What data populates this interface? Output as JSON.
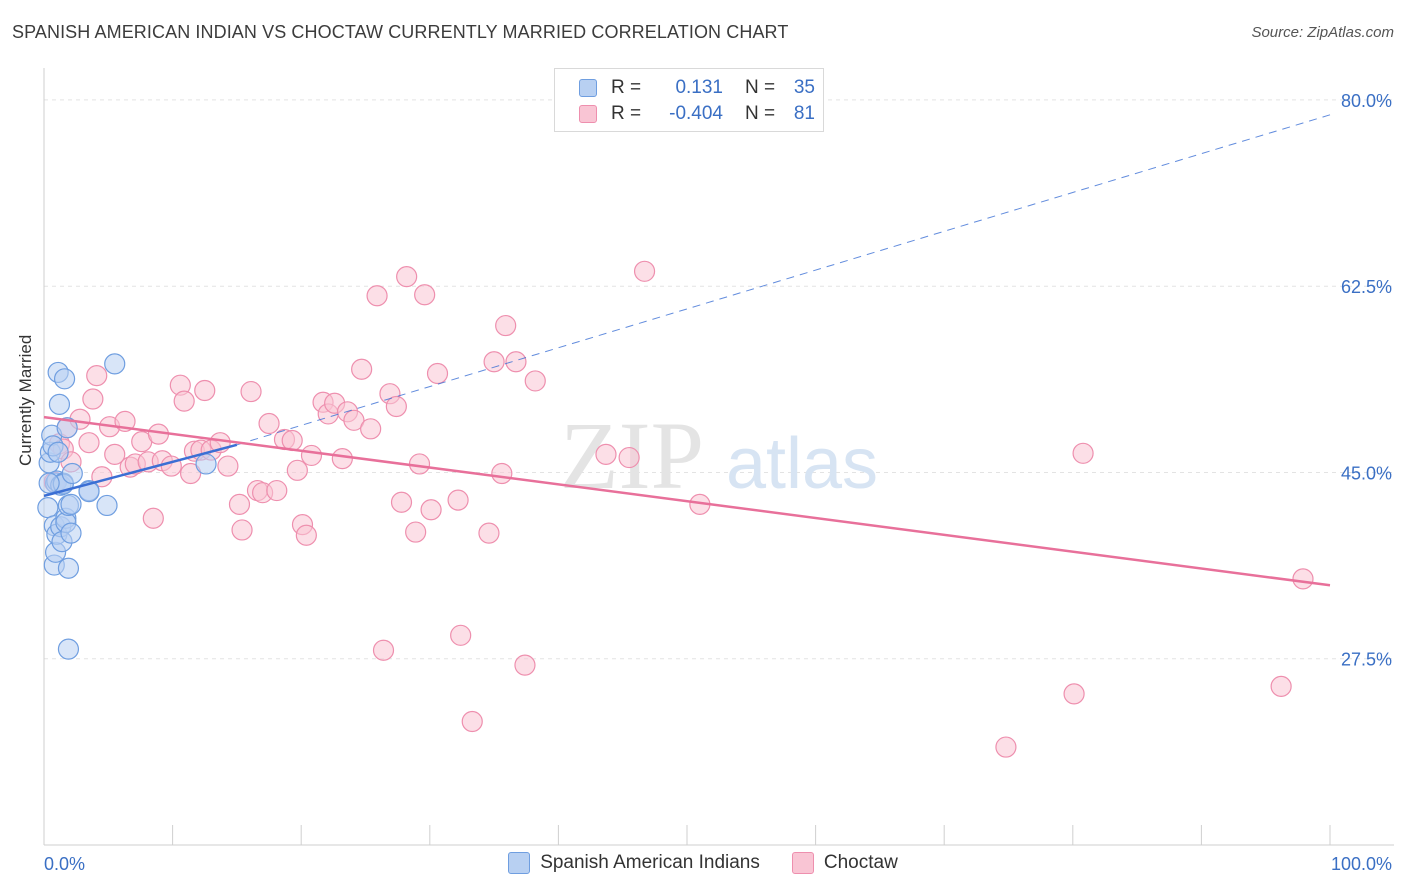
{
  "title": "SPANISH AMERICAN INDIAN VS CHOCTAW CURRENTLY MARRIED CORRELATION CHART",
  "source": "Source: ZipAtlas.com",
  "watermark": {
    "zip": "ZIP",
    "atlas": "atlas"
  },
  "legend": {
    "r_label": "R =",
    "n_label": "N =",
    "rows": [
      {
        "r": "0.131",
        "n": "35",
        "fill": "#b8d0f2",
        "stroke": "#6f9ee0"
      },
      {
        "r": "-0.404",
        "n": "81",
        "fill": "#f9c5d4",
        "stroke": "#ee8fae"
      }
    ]
  },
  "chart_data": {
    "type": "scatter",
    "title": "SPANISH AMERICAN INDIAN VS CHOCTAW CURRENTLY MARRIED CORRELATION CHART",
    "xlabel": "",
    "ylabel": "Currently Married",
    "xlim": [
      0,
      100
    ],
    "ylim": [
      10,
      83
    ],
    "x_tick_labels": [
      "0.0%",
      "100.0%"
    ],
    "y_ticks": [
      27.5,
      45.0,
      62.5,
      80.0
    ],
    "y_tick_labels": [
      "27.5%",
      "45.0%",
      "62.5%",
      "80.0%"
    ],
    "grid": true,
    "colors": {
      "blue_fill": "#b8d0f2",
      "blue_stroke": "#6f9ee0",
      "blue_line": "#3b6fd4",
      "pink_fill": "#f9c5d4",
      "pink_stroke": "#ee8fae",
      "pink_line": "#e8709a",
      "tick_label": "#3a6fc4"
    },
    "series": [
      {
        "name": "Spanish American Indians",
        "r": 0.131,
        "n": 35,
        "trend": {
          "x0": 0,
          "y0": 42.8,
          "x1": 15,
          "y1": 47.6
        },
        "trend_ext": {
          "x0": 15,
          "y0": 47.6,
          "x1": 100,
          "y1": 78.6
        },
        "points": [
          [
            0.3,
            41.7
          ],
          [
            0.4,
            45.9
          ],
          [
            0.5,
            46.9
          ],
          [
            0.6,
            48.5
          ],
          [
            0.7,
            47.5
          ],
          [
            0.8,
            40.0
          ],
          [
            0.8,
            36.3
          ],
          [
            0.9,
            44.0
          ],
          [
            0.9,
            37.5
          ],
          [
            1.0,
            44.2
          ],
          [
            1.0,
            39.2
          ],
          [
            1.1,
            46.9
          ],
          [
            1.1,
            54.4
          ],
          [
            1.2,
            51.4
          ],
          [
            1.3,
            39.9
          ],
          [
            1.3,
            43.8
          ],
          [
            1.4,
            38.5
          ],
          [
            1.5,
            44.0
          ],
          [
            1.5,
            43.9
          ],
          [
            1.6,
            53.8
          ],
          [
            1.7,
            40.7
          ],
          [
            1.7,
            40.3
          ],
          [
            1.8,
            49.2
          ],
          [
            1.9,
            36.0
          ],
          [
            1.9,
            41.9
          ],
          [
            1.9,
            28.4
          ],
          [
            2.1,
            39.3
          ],
          [
            2.1,
            42.0
          ],
          [
            2.2,
            44.9
          ],
          [
            3.5,
            43.3
          ],
          [
            3.5,
            43.2
          ],
          [
            4.9,
            41.9
          ],
          [
            5.5,
            55.2
          ],
          [
            12.6,
            45.8
          ],
          [
            0.4,
            44.0
          ]
        ]
      },
      {
        "name": "Choctaw",
        "r": -0.404,
        "n": 81,
        "trend": {
          "x0": 0,
          "y0": 50.2,
          "x1": 100,
          "y1": 34.4
        },
        "points": [
          [
            0.8,
            44.1
          ],
          [
            1.2,
            47.7
          ],
          [
            1.5,
            47.2
          ],
          [
            1.8,
            49.2
          ],
          [
            2.1,
            46.0
          ],
          [
            2.8,
            50.0
          ],
          [
            3.5,
            47.8
          ],
          [
            3.8,
            51.9
          ],
          [
            4.1,
            54.1
          ],
          [
            4.5,
            44.6
          ],
          [
            5.1,
            49.3
          ],
          [
            5.5,
            46.7
          ],
          [
            6.3,
            49.8
          ],
          [
            6.7,
            45.5
          ],
          [
            7.1,
            45.8
          ],
          [
            7.6,
            47.9
          ],
          [
            8.1,
            46.0
          ],
          [
            8.5,
            40.7
          ],
          [
            8.9,
            48.6
          ],
          [
            9.2,
            46.1
          ],
          [
            9.9,
            45.6
          ],
          [
            10.6,
            53.2
          ],
          [
            10.9,
            51.7
          ],
          [
            11.4,
            44.9
          ],
          [
            11.7,
            47.0
          ],
          [
            12.2,
            47.1
          ],
          [
            12.5,
            52.7
          ],
          [
            13.0,
            47.1
          ],
          [
            13.7,
            47.8
          ],
          [
            14.3,
            45.6
          ],
          [
            15.2,
            42.0
          ],
          [
            15.4,
            39.6
          ],
          [
            16.1,
            52.6
          ],
          [
            16.6,
            43.3
          ],
          [
            17.0,
            43.1
          ],
          [
            17.5,
            49.6
          ],
          [
            18.1,
            43.3
          ],
          [
            18.7,
            48.1
          ],
          [
            19.3,
            48.0
          ],
          [
            19.7,
            45.2
          ],
          [
            20.1,
            40.1
          ],
          [
            20.4,
            39.1
          ],
          [
            20.8,
            46.6
          ],
          [
            21.7,
            51.6
          ],
          [
            22.1,
            50.5
          ],
          [
            22.6,
            51.5
          ],
          [
            23.2,
            46.3
          ],
          [
            23.6,
            50.7
          ],
          [
            24.1,
            49.9
          ],
          [
            24.7,
            54.7
          ],
          [
            25.4,
            49.1
          ],
          [
            25.9,
            61.6
          ],
          [
            26.4,
            28.3
          ],
          [
            26.9,
            52.4
          ],
          [
            27.4,
            51.2
          ],
          [
            27.8,
            42.2
          ],
          [
            28.2,
            63.4
          ],
          [
            28.9,
            39.4
          ],
          [
            29.2,
            45.8
          ],
          [
            29.6,
            61.7
          ],
          [
            30.1,
            41.5
          ],
          [
            30.6,
            54.3
          ],
          [
            32.2,
            42.4
          ],
          [
            32.4,
            29.7
          ],
          [
            33.3,
            21.6
          ],
          [
            34.6,
            39.3
          ],
          [
            35.0,
            55.4
          ],
          [
            35.6,
            44.9
          ],
          [
            35.9,
            58.8
          ],
          [
            36.7,
            55.4
          ],
          [
            37.4,
            26.9
          ],
          [
            38.2,
            53.6
          ],
          [
            43.7,
            46.7
          ],
          [
            45.5,
            46.4
          ],
          [
            46.7,
            63.9
          ],
          [
            51.0,
            42.0
          ],
          [
            74.8,
            19.2
          ],
          [
            80.1,
            24.2
          ],
          [
            80.8,
            46.8
          ],
          [
            96.2,
            24.9
          ],
          [
            97.9,
            35.0
          ]
        ]
      }
    ]
  }
}
